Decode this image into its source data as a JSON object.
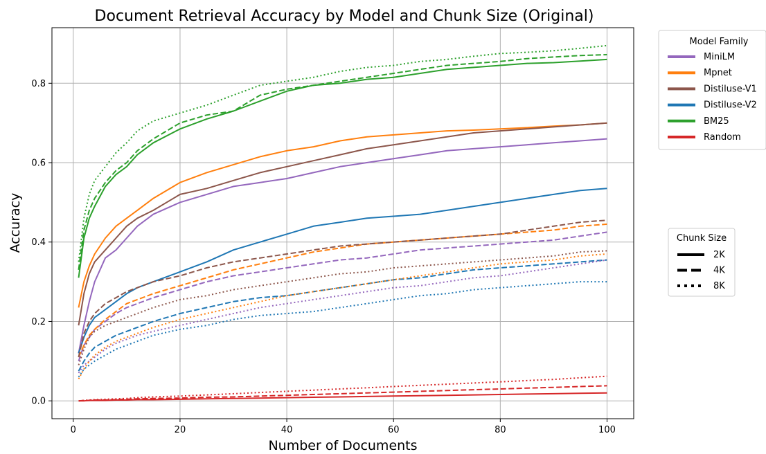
{
  "chart_data": {
    "type": "line",
    "title": "Document Retrieval Accuracy by Model and Chunk Size (Original)",
    "xlabel": "Number of Documents",
    "ylabel": "Accuracy",
    "xlim": [
      -4,
      105
    ],
    "ylim": [
      -0.045,
      0.94
    ],
    "xticks": [
      0,
      20,
      40,
      60,
      80,
      100
    ],
    "yticks": [
      0.0,
      0.2,
      0.4,
      0.6,
      0.8
    ],
    "xtick_labels": [
      "0",
      "20",
      "40",
      "60",
      "80",
      "100"
    ],
    "ytick_labels": [
      "0.0",
      "0.2",
      "0.4",
      "0.6",
      "0.8"
    ],
    "grid": true,
    "legend_family": {
      "title": "Model Family",
      "placement": "outside-top-right",
      "entries": [
        {
          "label": "MiniLM",
          "color": "#9467bd"
        },
        {
          "label": "Mpnet",
          "color": "#ff7f0e"
        },
        {
          "label": "Distiluse-V1",
          "color": "#8c564b"
        },
        {
          "label": "Distiluse-V2",
          "color": "#1f77b4"
        },
        {
          "label": "BM25",
          "color": "#2ca02c"
        },
        {
          "label": "Random",
          "color": "#d62728"
        }
      ]
    },
    "legend_chunk": {
      "title": "Chunk Size",
      "placement": "outside-right",
      "entries": [
        {
          "label": "2K",
          "style": "solid"
        },
        {
          "label": "4K",
          "style": "dashed"
        },
        {
          "label": "8K",
          "style": "dotted"
        }
      ]
    },
    "x": [
      1,
      2,
      3,
      4,
      6,
      8,
      10,
      12,
      15,
      20,
      25,
      30,
      35,
      40,
      45,
      50,
      55,
      60,
      65,
      70,
      75,
      80,
      85,
      90,
      95,
      100
    ],
    "series": [
      {
        "family": "MiniLM",
        "chunk": "2K",
        "color": "#9467bd",
        "style": "solid",
        "values": [
          0.12,
          0.19,
          0.25,
          0.3,
          0.36,
          0.38,
          0.41,
          0.44,
          0.47,
          0.5,
          0.52,
          0.54,
          0.55,
          0.56,
          0.575,
          0.59,
          0.6,
          0.61,
          0.62,
          0.63,
          0.635,
          0.64,
          0.645,
          0.65,
          0.655,
          0.66
        ]
      },
      {
        "family": "Mpnet",
        "chunk": "2K",
        "color": "#ff7f0e",
        "style": "solid",
        "values": [
          0.235,
          0.3,
          0.34,
          0.37,
          0.41,
          0.44,
          0.46,
          0.48,
          0.51,
          0.55,
          0.575,
          0.595,
          0.615,
          0.63,
          0.64,
          0.655,
          0.665,
          0.67,
          0.675,
          0.68,
          0.682,
          0.685,
          0.688,
          0.692,
          0.695,
          0.7
        ]
      },
      {
        "family": "Distiluse-V1",
        "chunk": "2K",
        "color": "#8c564b",
        "style": "solid",
        "values": [
          0.19,
          0.27,
          0.32,
          0.35,
          0.38,
          0.41,
          0.44,
          0.46,
          0.48,
          0.52,
          0.535,
          0.555,
          0.575,
          0.59,
          0.605,
          0.62,
          0.635,
          0.645,
          0.655,
          0.665,
          0.675,
          0.68,
          0.685,
          0.69,
          0.695,
          0.7
        ]
      },
      {
        "family": "Distiluse-V2",
        "chunk": "2K",
        "color": "#1f77b4",
        "style": "solid",
        "values": [
          0.12,
          0.16,
          0.19,
          0.21,
          0.23,
          0.25,
          0.27,
          0.285,
          0.3,
          0.325,
          0.35,
          0.38,
          0.4,
          0.42,
          0.44,
          0.45,
          0.46,
          0.465,
          0.47,
          0.48,
          0.49,
          0.5,
          0.51,
          0.52,
          0.53,
          0.535
        ]
      },
      {
        "family": "BM25",
        "chunk": "2K",
        "color": "#2ca02c",
        "style": "solid",
        "values": [
          0.31,
          0.41,
          0.46,
          0.49,
          0.54,
          0.57,
          0.59,
          0.62,
          0.65,
          0.685,
          0.71,
          0.73,
          0.755,
          0.78,
          0.795,
          0.8,
          0.81,
          0.815,
          0.825,
          0.835,
          0.84,
          0.845,
          0.85,
          0.852,
          0.856,
          0.86
        ]
      },
      {
        "family": "Random",
        "chunk": "2K",
        "color": "#d62728",
        "style": "solid",
        "values": [
          0.0,
          0.0,
          0.001,
          0.001,
          0.001,
          0.002,
          0.002,
          0.003,
          0.003,
          0.004,
          0.005,
          0.006,
          0.007,
          0.008,
          0.009,
          0.01,
          0.011,
          0.012,
          0.013,
          0.014,
          0.015,
          0.016,
          0.017,
          0.018,
          0.019,
          0.02
        ]
      },
      {
        "family": "MiniLM",
        "chunk": "4K",
        "color": "#9467bd",
        "style": "dashed",
        "values": [
          0.1,
          0.14,
          0.16,
          0.18,
          0.2,
          0.22,
          0.235,
          0.245,
          0.26,
          0.28,
          0.3,
          0.315,
          0.325,
          0.335,
          0.345,
          0.355,
          0.36,
          0.37,
          0.38,
          0.385,
          0.39,
          0.395,
          0.4,
          0.405,
          0.415,
          0.425
        ]
      },
      {
        "family": "Mpnet",
        "chunk": "4K",
        "color": "#ff7f0e",
        "style": "dashed",
        "values": [
          0.11,
          0.14,
          0.165,
          0.18,
          0.205,
          0.225,
          0.245,
          0.255,
          0.27,
          0.29,
          0.31,
          0.33,
          0.345,
          0.36,
          0.375,
          0.385,
          0.395,
          0.4,
          0.405,
          0.41,
          0.415,
          0.42,
          0.425,
          0.43,
          0.44,
          0.445
        ]
      },
      {
        "family": "Distiluse-V1",
        "chunk": "4K",
        "color": "#8c564b",
        "style": "dashed",
        "values": [
          0.11,
          0.17,
          0.2,
          0.22,
          0.245,
          0.26,
          0.275,
          0.285,
          0.3,
          0.315,
          0.335,
          0.35,
          0.36,
          0.37,
          0.38,
          0.39,
          0.395,
          0.4,
          0.405,
          0.41,
          0.415,
          0.42,
          0.43,
          0.44,
          0.45,
          0.455
        ]
      },
      {
        "family": "Distiluse-V2",
        "chunk": "4K",
        "color": "#1f77b4",
        "style": "dashed",
        "values": [
          0.075,
          0.1,
          0.12,
          0.135,
          0.15,
          0.165,
          0.175,
          0.185,
          0.2,
          0.22,
          0.235,
          0.25,
          0.26,
          0.265,
          0.275,
          0.285,
          0.295,
          0.305,
          0.31,
          0.32,
          0.33,
          0.335,
          0.34,
          0.345,
          0.35,
          0.355
        ]
      },
      {
        "family": "BM25",
        "chunk": "4K",
        "color": "#2ca02c",
        "style": "dashed",
        "values": [
          0.33,
          0.43,
          0.48,
          0.51,
          0.55,
          0.58,
          0.6,
          0.63,
          0.66,
          0.7,
          0.72,
          0.73,
          0.77,
          0.785,
          0.795,
          0.805,
          0.815,
          0.825,
          0.835,
          0.845,
          0.85,
          0.855,
          0.862,
          0.866,
          0.87,
          0.872
        ]
      },
      {
        "family": "Random",
        "chunk": "4K",
        "color": "#d62728",
        "style": "dashed",
        "values": [
          0.0,
          0.001,
          0.001,
          0.002,
          0.002,
          0.003,
          0.004,
          0.005,
          0.006,
          0.007,
          0.009,
          0.01,
          0.012,
          0.014,
          0.016,
          0.018,
          0.02,
          0.022,
          0.024,
          0.026,
          0.028,
          0.03,
          0.032,
          0.034,
          0.036,
          0.038
        ]
      },
      {
        "family": "MiniLM",
        "chunk": "8K",
        "color": "#9467bd",
        "style": "dotted",
        "values": [
          0.07,
          0.09,
          0.1,
          0.11,
          0.13,
          0.145,
          0.155,
          0.165,
          0.175,
          0.19,
          0.205,
          0.22,
          0.235,
          0.245,
          0.255,
          0.265,
          0.275,
          0.285,
          0.29,
          0.3,
          0.31,
          0.315,
          0.325,
          0.335,
          0.345,
          0.355
        ]
      },
      {
        "family": "Mpnet",
        "chunk": "8K",
        "color": "#ff7f0e",
        "style": "dotted",
        "values": [
          0.055,
          0.08,
          0.1,
          0.115,
          0.135,
          0.15,
          0.16,
          0.17,
          0.185,
          0.205,
          0.22,
          0.235,
          0.25,
          0.265,
          0.275,
          0.285,
          0.295,
          0.305,
          0.315,
          0.325,
          0.335,
          0.345,
          0.35,
          0.355,
          0.365,
          0.37
        ]
      },
      {
        "family": "Distiluse-V1",
        "chunk": "8K",
        "color": "#8c564b",
        "style": "dotted",
        "values": [
          0.09,
          0.13,
          0.16,
          0.175,
          0.19,
          0.2,
          0.21,
          0.22,
          0.235,
          0.255,
          0.265,
          0.28,
          0.29,
          0.3,
          0.31,
          0.32,
          0.325,
          0.335,
          0.34,
          0.345,
          0.35,
          0.355,
          0.36,
          0.365,
          0.375,
          0.378
        ]
      },
      {
        "family": "Distiluse-V2",
        "chunk": "8K",
        "color": "#1f77b4",
        "style": "dotted",
        "values": [
          0.06,
          0.08,
          0.09,
          0.1,
          0.115,
          0.13,
          0.14,
          0.15,
          0.165,
          0.18,
          0.19,
          0.205,
          0.215,
          0.22,
          0.225,
          0.235,
          0.245,
          0.255,
          0.265,
          0.27,
          0.28,
          0.285,
          0.29,
          0.295,
          0.3,
          0.3
        ]
      },
      {
        "family": "BM25",
        "chunk": "8K",
        "color": "#2ca02c",
        "style": "dotted",
        "values": [
          0.35,
          0.46,
          0.52,
          0.555,
          0.59,
          0.625,
          0.65,
          0.68,
          0.705,
          0.725,
          0.745,
          0.77,
          0.795,
          0.805,
          0.815,
          0.83,
          0.84,
          0.845,
          0.855,
          0.86,
          0.868,
          0.875,
          0.878,
          0.882,
          0.888,
          0.895
        ]
      },
      {
        "family": "Random",
        "chunk": "8K",
        "color": "#d62728",
        "style": "dotted",
        "values": [
          0.0,
          0.001,
          0.002,
          0.003,
          0.004,
          0.005,
          0.006,
          0.008,
          0.01,
          0.012,
          0.015,
          0.018,
          0.021,
          0.024,
          0.027,
          0.03,
          0.033,
          0.036,
          0.039,
          0.042,
          0.045,
          0.048,
          0.051,
          0.054,
          0.058,
          0.062
        ]
      }
    ]
  }
}
